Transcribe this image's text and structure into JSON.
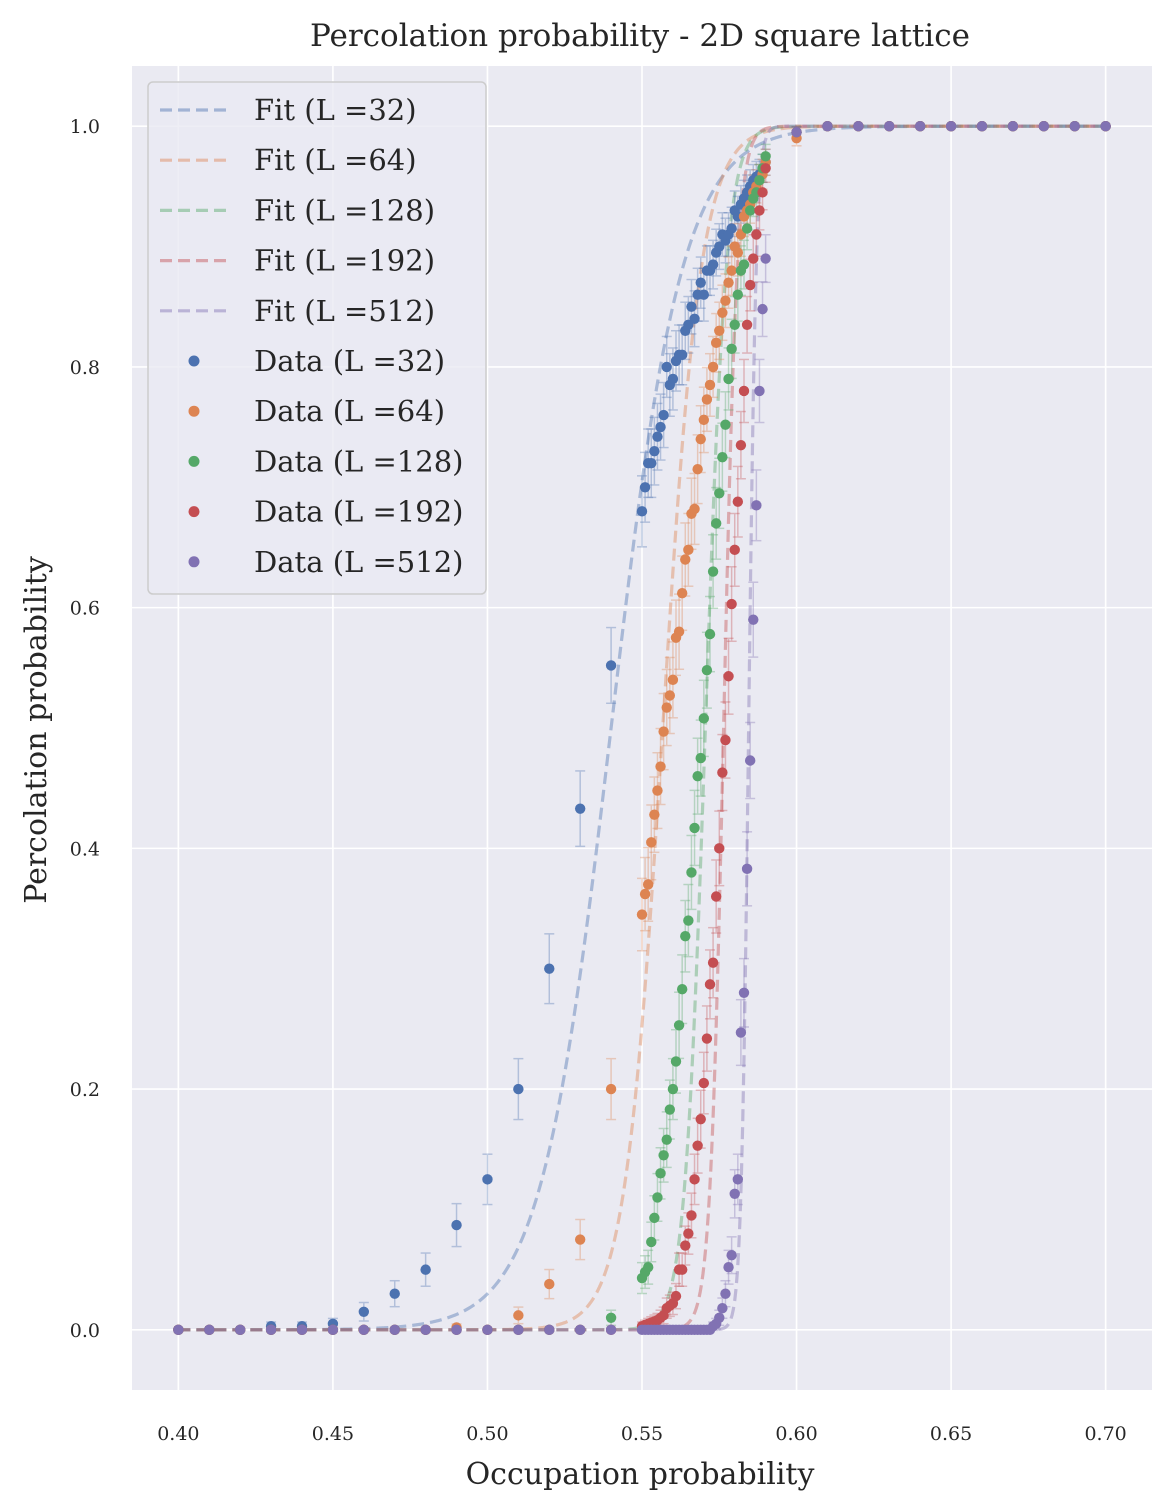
{
  "chart_data": {
    "type": "scatter",
    "title": "Percolation probability - 2D square lattice",
    "xlabel": "Occupation probability",
    "ylabel": "Percolation probability",
    "xlim": [
      0.385,
      0.715
    ],
    "ylim": [
      -0.05,
      1.05
    ],
    "xticks": [
      0.4,
      0.45,
      0.5,
      0.55,
      0.6,
      0.65,
      0.7
    ],
    "xtick_labels": [
      "0.40",
      "0.45",
      "0.50",
      "0.55",
      "0.60",
      "0.65",
      "0.70"
    ],
    "yticks": [
      0.0,
      0.2,
      0.4,
      0.6,
      0.8,
      1.0
    ],
    "ytick_labels": [
      "0.0",
      "0.2",
      "0.4",
      "0.6",
      "0.8",
      "1.0"
    ],
    "grid": true,
    "legend_position": "top-left",
    "fit_model": "logistic",
    "series": [
      {
        "L": 32,
        "color": "#4c72b0",
        "fit_label": "Fit (L =32)",
        "data_label": "Data (L =32)",
        "fit_center": 0.54,
        "fit_width": 0.0115,
        "x": [
          0.4,
          0.41,
          0.42,
          0.43,
          0.44,
          0.45,
          0.46,
          0.47,
          0.48,
          0.49,
          0.5,
          0.51,
          0.52,
          0.53,
          0.54,
          0.55,
          0.551,
          0.552,
          0.553,
          0.554,
          0.555,
          0.556,
          0.557,
          0.558,
          0.559,
          0.56,
          0.561,
          0.562,
          0.563,
          0.564,
          0.565,
          0.566,
          0.567,
          0.568,
          0.569,
          0.57,
          0.571,
          0.572,
          0.573,
          0.574,
          0.575,
          0.576,
          0.577,
          0.578,
          0.579,
          0.58,
          0.581,
          0.582,
          0.583,
          0.584,
          0.585,
          0.586,
          0.587,
          0.588,
          0.589,
          0.59,
          0.6,
          0.61,
          0.62,
          0.63,
          0.64,
          0.65,
          0.66,
          0.67,
          0.68,
          0.69,
          0.7
        ],
        "y": [
          0.0,
          0.0,
          0.0,
          0.003,
          0.003,
          0.005,
          0.015,
          0.03,
          0.05,
          0.087,
          0.125,
          0.2,
          0.3,
          0.433,
          0.552,
          0.68,
          0.7,
          0.72,
          0.72,
          0.73,
          0.742,
          0.75,
          0.76,
          0.8,
          0.785,
          0.79,
          0.805,
          0.81,
          0.81,
          0.83,
          0.835,
          0.85,
          0.84,
          0.86,
          0.87,
          0.86,
          0.88,
          0.88,
          0.885,
          0.895,
          0.9,
          0.91,
          0.905,
          0.91,
          0.915,
          0.93,
          0.925,
          0.935,
          0.94,
          0.945,
          0.95,
          0.955,
          0.958,
          0.96,
          0.965,
          0.97,
          0.995,
          1.0,
          1.0,
          1.0,
          1.0,
          1.0,
          1.0,
          1.0,
          1.0,
          1.0,
          1.0
        ]
      },
      {
        "L": 64,
        "color": "#dd8452",
        "fit_label": "Fit (L =64)",
        "data_label": "Data (L =64)",
        "fit_center": 0.5567,
        "fit_width": 0.0062,
        "x": [
          0.4,
          0.41,
          0.42,
          0.43,
          0.44,
          0.45,
          0.46,
          0.47,
          0.48,
          0.49,
          0.5,
          0.51,
          0.52,
          0.53,
          0.54,
          0.55,
          0.551,
          0.552,
          0.553,
          0.554,
          0.555,
          0.556,
          0.557,
          0.558,
          0.559,
          0.56,
          0.561,
          0.562,
          0.563,
          0.564,
          0.565,
          0.566,
          0.567,
          0.568,
          0.569,
          0.57,
          0.571,
          0.572,
          0.573,
          0.574,
          0.575,
          0.576,
          0.577,
          0.578,
          0.579,
          0.58,
          0.581,
          0.582,
          0.583,
          0.584,
          0.585,
          0.586,
          0.587,
          0.588,
          0.589,
          0.59,
          0.6,
          0.61,
          0.62,
          0.63,
          0.64,
          0.65,
          0.66,
          0.67,
          0.68,
          0.69,
          0.7
        ],
        "y": [
          0.0,
          0.0,
          0.0,
          0.0,
          0.0,
          0.0,
          0.0,
          0.0,
          0.0,
          0.002,
          0.0,
          0.012,
          0.038,
          0.075,
          0.2,
          0.345,
          0.362,
          0.37,
          0.405,
          0.428,
          0.448,
          0.468,
          0.497,
          0.517,
          0.527,
          0.54,
          0.575,
          0.58,
          0.612,
          0.64,
          0.648,
          0.678,
          0.682,
          0.715,
          0.74,
          0.756,
          0.773,
          0.785,
          0.8,
          0.82,
          0.83,
          0.845,
          0.855,
          0.87,
          0.88,
          0.9,
          0.895,
          0.91,
          0.925,
          0.93,
          0.935,
          0.945,
          0.95,
          0.955,
          0.96,
          0.97,
          0.99,
          1.0,
          1.0,
          1.0,
          1.0,
          1.0,
          1.0,
          1.0,
          1.0,
          1.0,
          1.0
        ]
      },
      {
        "L": 128,
        "color": "#55a868",
        "fit_label": "Fit (L =128)",
        "data_label": "Data (L =128)",
        "fit_center": 0.5705,
        "fit_width": 0.00337,
        "x": [
          0.4,
          0.41,
          0.42,
          0.43,
          0.44,
          0.45,
          0.46,
          0.47,
          0.48,
          0.49,
          0.5,
          0.51,
          0.52,
          0.53,
          0.54,
          0.55,
          0.551,
          0.552,
          0.553,
          0.554,
          0.555,
          0.556,
          0.557,
          0.558,
          0.559,
          0.56,
          0.561,
          0.562,
          0.563,
          0.564,
          0.565,
          0.566,
          0.567,
          0.568,
          0.569,
          0.57,
          0.571,
          0.572,
          0.573,
          0.574,
          0.575,
          0.576,
          0.577,
          0.578,
          0.579,
          0.58,
          0.581,
          0.582,
          0.583,
          0.584,
          0.585,
          0.586,
          0.587,
          0.588,
          0.589,
          0.59,
          0.6,
          0.61,
          0.62,
          0.63,
          0.64,
          0.65,
          0.66,
          0.67,
          0.68,
          0.69,
          0.7
        ],
        "y": [
          0.0,
          0.0,
          0.0,
          0.0,
          0.0,
          0.0,
          0.0,
          0.0,
          0.0,
          0.0,
          0.0,
          0.0,
          0.0,
          0.0,
          0.01,
          0.043,
          0.048,
          0.052,
          0.073,
          0.093,
          0.11,
          0.13,
          0.145,
          0.158,
          0.183,
          0.2,
          0.223,
          0.253,
          0.283,
          0.327,
          0.34,
          0.38,
          0.417,
          0.46,
          0.475,
          0.508,
          0.548,
          0.578,
          0.63,
          0.67,
          0.695,
          0.725,
          0.752,
          0.79,
          0.815,
          0.835,
          0.86,
          0.88,
          0.885,
          0.915,
          0.93,
          0.94,
          0.945,
          0.955,
          0.965,
          0.975,
          0.995,
          1.0,
          1.0,
          1.0,
          1.0,
          1.0,
          1.0,
          1.0,
          1.0,
          1.0,
          1.0
        ]
      },
      {
        "L": 192,
        "color": "#c44e52",
        "fit_label": "Fit (L =192)",
        "data_label": "Data (L =192)",
        "fit_center": 0.5764,
        "fit_width": 0.00221,
        "x": [
          0.4,
          0.41,
          0.42,
          0.43,
          0.44,
          0.45,
          0.46,
          0.47,
          0.48,
          0.49,
          0.5,
          0.51,
          0.52,
          0.53,
          0.54,
          0.55,
          0.551,
          0.552,
          0.553,
          0.554,
          0.555,
          0.556,
          0.557,
          0.558,
          0.559,
          0.56,
          0.561,
          0.562,
          0.563,
          0.564,
          0.565,
          0.566,
          0.567,
          0.568,
          0.569,
          0.57,
          0.571,
          0.572,
          0.573,
          0.574,
          0.575,
          0.576,
          0.577,
          0.578,
          0.579,
          0.58,
          0.581,
          0.582,
          0.583,
          0.584,
          0.585,
          0.586,
          0.587,
          0.588,
          0.589,
          0.59,
          0.6,
          0.61,
          0.62,
          0.63,
          0.64,
          0.65,
          0.66,
          0.67,
          0.68,
          0.69,
          0.7
        ],
        "y": [
          0.0,
          0.0,
          0.0,
          0.0,
          0.0,
          0.0,
          0.0,
          0.0,
          0.0,
          0.0,
          0.0,
          0.0,
          0.0,
          0.0,
          0.0,
          0.003,
          0.004,
          0.005,
          0.006,
          0.007,
          0.008,
          0.01,
          0.012,
          0.018,
          0.02,
          0.022,
          0.028,
          0.05,
          0.05,
          0.07,
          0.08,
          0.095,
          0.125,
          0.153,
          0.175,
          0.205,
          0.242,
          0.287,
          0.305,
          0.36,
          0.4,
          0.463,
          0.49,
          0.543,
          0.603,
          0.648,
          0.688,
          0.735,
          0.78,
          0.835,
          0.868,
          0.89,
          0.91,
          0.93,
          0.945,
          0.965,
          0.995,
          1.0,
          1.0,
          1.0,
          1.0,
          1.0,
          1.0,
          1.0,
          1.0,
          1.0,
          1.0
        ]
      },
      {
        "L": 512,
        "color": "#8172b3",
        "fit_label": "Fit (L =512)",
        "data_label": "Data (L =512)",
        "fit_center": 0.5845,
        "fit_width": 0.00122,
        "x": [
          0.4,
          0.41,
          0.42,
          0.43,
          0.44,
          0.45,
          0.46,
          0.47,
          0.48,
          0.49,
          0.5,
          0.51,
          0.52,
          0.53,
          0.54,
          0.55,
          0.551,
          0.552,
          0.553,
          0.554,
          0.555,
          0.556,
          0.557,
          0.558,
          0.559,
          0.56,
          0.561,
          0.562,
          0.563,
          0.564,
          0.565,
          0.566,
          0.567,
          0.568,
          0.569,
          0.57,
          0.571,
          0.572,
          0.573,
          0.574,
          0.575,
          0.576,
          0.577,
          0.578,
          0.579,
          0.58,
          0.581,
          0.582,
          0.583,
          0.584,
          0.585,
          0.586,
          0.587,
          0.588,
          0.589,
          0.59,
          0.6,
          0.61,
          0.62,
          0.63,
          0.64,
          0.65,
          0.66,
          0.67,
          0.68,
          0.69,
          0.7
        ],
        "y": [
          0.0,
          0.0,
          0.0,
          0.0,
          0.0,
          0.0,
          0.0,
          0.0,
          0.0,
          0.0,
          0.0,
          0.0,
          0.0,
          0.0,
          0.0,
          0.0,
          0.0,
          0.0,
          0.0,
          0.0,
          0.0,
          0.0,
          0.0,
          0.0,
          0.0,
          0.0,
          0.0,
          0.0,
          0.0,
          0.0,
          0.0,
          0.0,
          0.0,
          0.0,
          0.0,
          0.0,
          0.0,
          0.0,
          0.003,
          0.005,
          0.01,
          0.018,
          0.03,
          0.052,
          0.062,
          0.113,
          0.125,
          0.247,
          0.28,
          0.383,
          0.473,
          0.59,
          0.685,
          0.78,
          0.848,
          0.89,
          0.995,
          1.0,
          1.0,
          1.0,
          1.0,
          1.0,
          1.0,
          1.0,
          1.0,
          1.0,
          1.0
        ]
      }
    ]
  }
}
